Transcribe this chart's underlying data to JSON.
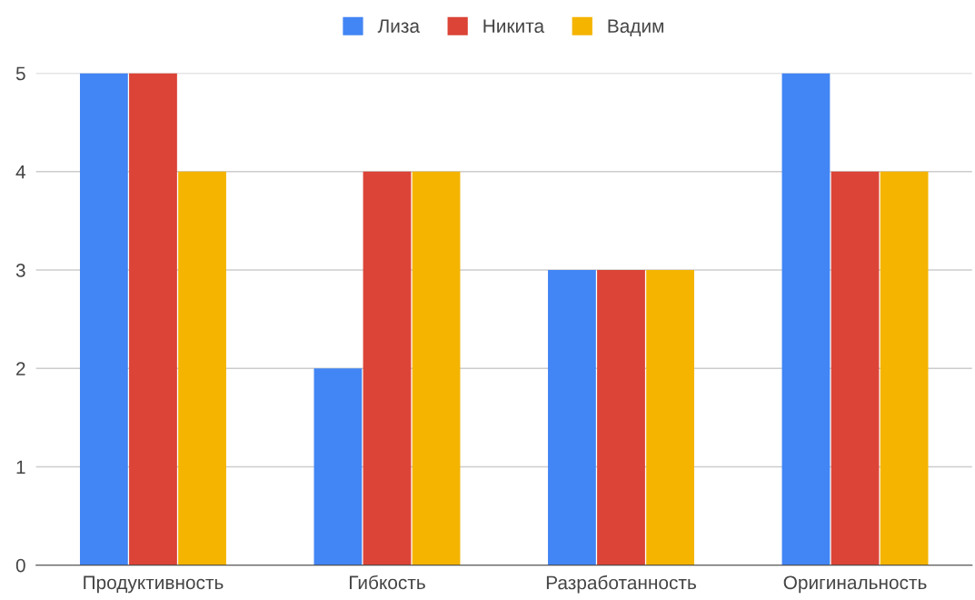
{
  "chart_data": {
    "type": "bar",
    "categories": [
      "Продуктивность",
      "Гибкость",
      "Разработанность",
      "Оригинальность"
    ],
    "series": [
      {
        "name": "Лиза",
        "color": "#4285f4",
        "values": [
          5,
          2,
          3,
          5
        ]
      },
      {
        "name": "Никита",
        "color": "#db4437",
        "values": [
          5,
          4,
          3,
          4
        ]
      },
      {
        "name": "Вадим",
        "color": "#f4b400",
        "values": [
          4,
          4,
          3,
          4
        ]
      }
    ],
    "ylim": [
      0,
      5
    ],
    "yticks": [
      0,
      1,
      2,
      3,
      4,
      5
    ],
    "grid": "y",
    "legend": "top"
  }
}
